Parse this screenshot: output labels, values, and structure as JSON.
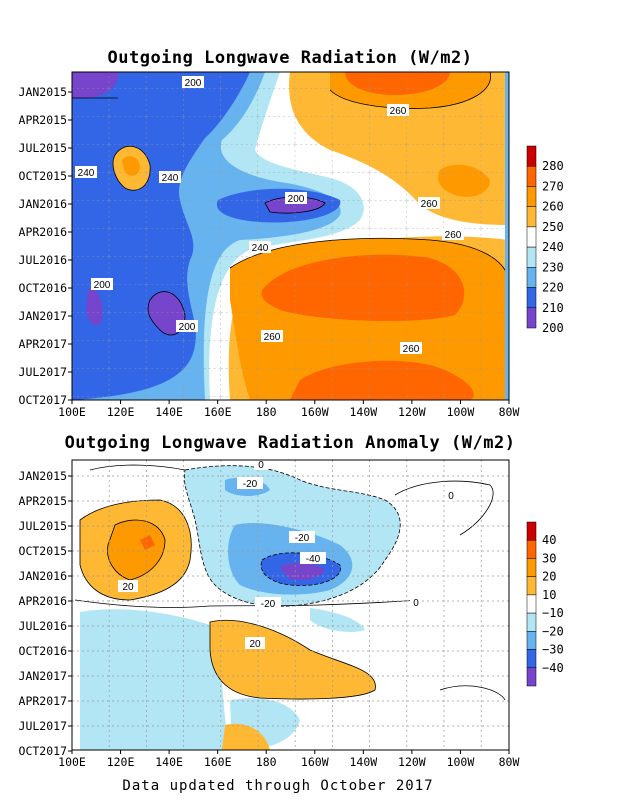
{
  "footer": "Data updated through October 2017",
  "chart_data": [
    {
      "type": "heatmap",
      "title": "Outgoing Longwave Radiation (W/m2)",
      "y_ticks": [
        "JAN2015",
        "APR2015",
        "JUL2015",
        "OCT2015",
        "JAN2016",
        "APR2016",
        "JUL2016",
        "OCT2016",
        "JAN2017",
        "APR2017",
        "JUL2017",
        "OCT2017"
      ],
      "x_ticks": [
        "100E",
        "120E",
        "140E",
        "160E",
        "180",
        "160W",
        "140W",
        "120W",
        "100W",
        "80W"
      ],
      "colorbar": {
        "labels": [
          "280",
          "270",
          "260",
          "250",
          "240",
          "230",
          "220",
          "210",
          "200"
        ],
        "colors": [
          "#cc0000",
          "#ff6600",
          "#ff9900",
          "#ffb833",
          "#ffffff",
          "#b3e6f5",
          "#66b3f0",
          "#3366e6",
          "#7744cc"
        ]
      },
      "contour_labels": [
        "200",
        "260",
        "240",
        "240",
        "200",
        "260",
        "260",
        "240",
        "200",
        "200",
        "260",
        "260"
      ]
    },
    {
      "type": "heatmap",
      "title": "Outgoing Longwave Radiation Anomaly (W/m2)",
      "y_ticks": [
        "JAN2015",
        "APR2015",
        "JUL2015",
        "OCT2015",
        "JAN2016",
        "APR2016",
        "JUL2016",
        "OCT2016",
        "JAN2017",
        "APR2017",
        "JUL2017",
        "OCT2017"
      ],
      "x_ticks": [
        "100E",
        "120E",
        "140E",
        "160E",
        "180",
        "160W",
        "140W",
        "120W",
        "100W",
        "80W"
      ],
      "colorbar": {
        "labels": [
          "40",
          "30",
          "20",
          "10",
          "−10",
          "−20",
          "−30",
          "−40"
        ],
        "colors": [
          "#cc0000",
          "#ff6600",
          "#ff9900",
          "#ffb833",
          "#ffffff",
          "#b3e6f5",
          "#66b3f0",
          "#3366e6",
          "#7744cc"
        ]
      },
      "contour_labels": [
        "-20",
        "0",
        "0",
        "-20",
        "-40",
        "20",
        "-20",
        "0",
        "20"
      ]
    }
  ]
}
